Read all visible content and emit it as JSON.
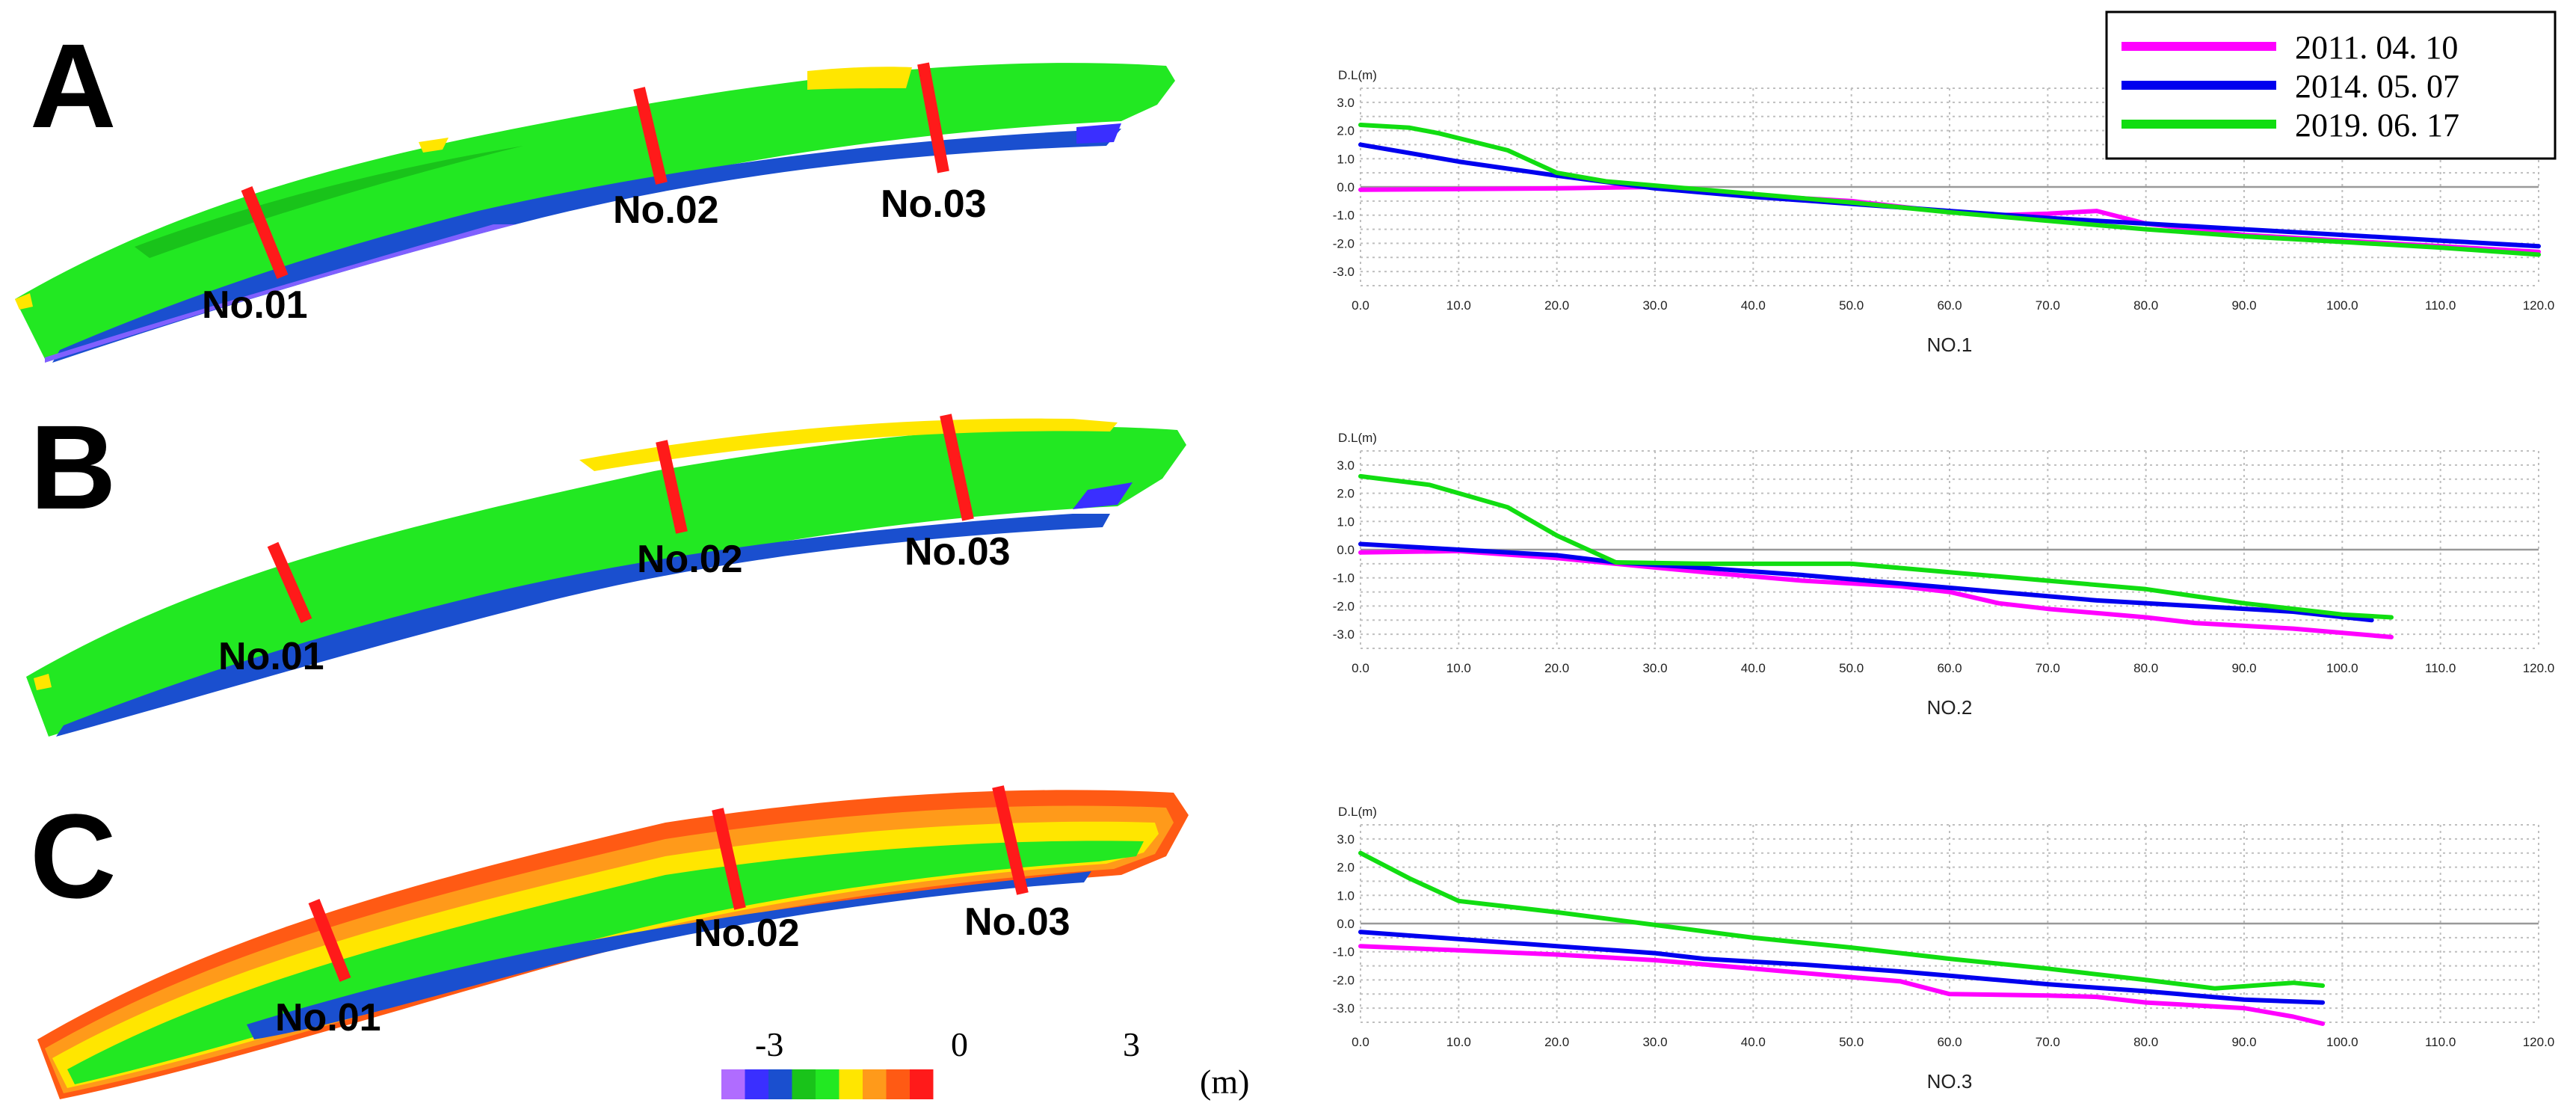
{
  "panels": [
    {
      "letter": "A",
      "sections": [
        "No.01",
        "No.02",
        "No.03"
      ]
    },
    {
      "letter": "B",
      "sections": [
        "No.01",
        "No.02",
        "No.03"
      ]
    },
    {
      "letter": "C",
      "sections": [
        "No.01",
        "No.02",
        "No.03"
      ]
    }
  ],
  "colorbar": {
    "colors": [
      "#b06cff",
      "#3a2fff",
      "#1a4fcf",
      "#19c31a",
      "#22e822",
      "#ffe600",
      "#ff9a1a",
      "#ff5a14",
      "#ff1a1a"
    ],
    "tick_labels": [
      "-3",
      "0",
      "3"
    ],
    "unit": "(m)"
  },
  "legend": {
    "entries": [
      {
        "label": "2011. 04. 10",
        "color": "#ff00ff"
      },
      {
        "label": "2014. 05. 07",
        "color": "#0000ee"
      },
      {
        "label": "2019. 06. 17",
        "color": "#11dd11"
      }
    ]
  },
  "chart_data": [
    {
      "type": "line",
      "title": "NO.1",
      "ylabel": "D.L(m)",
      "xlabel": "",
      "xlim": [
        0,
        120
      ],
      "ylim": [
        -3.5,
        3.5
      ],
      "x_ticks": [
        "0.0",
        "10.0",
        "20.0",
        "30.0",
        "40.0",
        "50.0",
        "60.0",
        "70.0",
        "80.0",
        "90.0",
        "100.0",
        "110.0",
        "120.0"
      ],
      "y_ticks": [
        "3.0",
        "2.0",
        "1.0",
        "0.0",
        "-1.0",
        "-2.0",
        "-3.0"
      ],
      "series": [
        {
          "name": "2011. 04. 10",
          "color": "#ff00ff",
          "x": [
            0,
            20,
            30,
            40,
            50,
            60,
            65,
            70,
            75,
            80,
            90,
            100,
            110,
            120
          ],
          "y": [
            -0.1,
            -0.05,
            0.0,
            -0.3,
            -0.5,
            -0.9,
            -1.0,
            -0.95,
            -0.85,
            -1.3,
            -1.7,
            -1.9,
            -2.1,
            -2.3
          ]
        },
        {
          "name": "2014. 05. 07",
          "color": "#0000ee",
          "x": [
            0,
            5,
            10,
            20,
            30,
            40,
            50,
            60,
            70,
            80,
            90,
            100,
            110,
            120
          ],
          "y": [
            1.5,
            1.2,
            0.9,
            0.4,
            -0.05,
            -0.35,
            -0.6,
            -0.85,
            -1.1,
            -1.3,
            -1.5,
            -1.7,
            -1.9,
            -2.1
          ]
        },
        {
          "name": "2019. 06. 17",
          "color": "#11dd11",
          "x": [
            0,
            5,
            8,
            15,
            20,
            25,
            30,
            40,
            50,
            60,
            70,
            80,
            90,
            100,
            110,
            120
          ],
          "y": [
            2.2,
            2.1,
            1.9,
            1.3,
            0.5,
            0.2,
            0.05,
            -0.25,
            -0.55,
            -0.9,
            -1.2,
            -1.5,
            -1.75,
            -1.95,
            -2.15,
            -2.4
          ]
        }
      ]
    },
    {
      "type": "line",
      "title": "NO.2",
      "ylabel": "D.L(m)",
      "xlabel": "",
      "xlim": [
        0,
        120
      ],
      "ylim": [
        -3.5,
        3.5
      ],
      "x_ticks": [
        "0.0",
        "10.0",
        "20.0",
        "30.0",
        "40.0",
        "50.0",
        "60.0",
        "70.0",
        "80.0",
        "90.0",
        "100.0",
        "110.0",
        "120.0"
      ],
      "y_ticks": [
        "3.0",
        "2.0",
        "1.0",
        "0.0",
        "-1.0",
        "-2.0",
        "-3.0"
      ],
      "series": [
        {
          "name": "2011. 04. 10",
          "color": "#ff00ff",
          "x": [
            0,
            10,
            20,
            26,
            35,
            45,
            55,
            60,
            65,
            70,
            80,
            85,
            95,
            105
          ],
          "y": [
            -0.1,
            -0.05,
            -0.3,
            -0.5,
            -0.8,
            -1.1,
            -1.3,
            -1.5,
            -1.9,
            -2.1,
            -2.4,
            -2.6,
            -2.8,
            -3.1
          ]
        },
        {
          "name": "2014. 05. 07",
          "color": "#0000ee",
          "x": [
            0,
            10,
            20,
            26,
            35,
            45,
            55,
            65,
            75,
            85,
            95,
            103
          ],
          "y": [
            0.2,
            0.0,
            -0.2,
            -0.45,
            -0.65,
            -0.9,
            -1.2,
            -1.5,
            -1.8,
            -2.0,
            -2.2,
            -2.5
          ]
        },
        {
          "name": "2019. 06. 17",
          "color": "#11dd11",
          "x": [
            0,
            7,
            15,
            20,
            26,
            35,
            45,
            50,
            60,
            70,
            80,
            90,
            100,
            105
          ],
          "y": [
            2.6,
            2.3,
            1.5,
            0.5,
            -0.45,
            -0.5,
            -0.5,
            -0.5,
            -0.8,
            -1.1,
            -1.4,
            -1.9,
            -2.3,
            -2.4
          ]
        }
      ]
    },
    {
      "type": "line",
      "title": "NO.3",
      "ylabel": "D.L(m)",
      "xlabel": "",
      "xlim": [
        0,
        120
      ],
      "ylim": [
        -3.5,
        3.5
      ],
      "x_ticks": [
        "0.0",
        "10.0",
        "20.0",
        "30.0",
        "40.0",
        "50.0",
        "60.0",
        "70.0",
        "80.0",
        "90.0",
        "100.0",
        "110.0",
        "120.0"
      ],
      "y_ticks": [
        "3.0",
        "2.0",
        "1.0",
        "0.0",
        "-1.0",
        "-2.0",
        "-3.0"
      ],
      "series": [
        {
          "name": "2011. 04. 10",
          "color": "#ff00ff",
          "x": [
            0,
            10,
            20,
            30,
            40,
            50,
            55,
            60,
            70,
            75,
            80,
            90,
            95,
            98
          ],
          "y": [
            -0.8,
            -0.95,
            -1.1,
            -1.3,
            -1.6,
            -1.9,
            -2.05,
            -2.5,
            -2.55,
            -2.6,
            -2.8,
            -3.0,
            -3.3,
            -3.55
          ]
        },
        {
          "name": "2014. 05. 07",
          "color": "#0000ee",
          "x": [
            0,
            10,
            20,
            30,
            35,
            45,
            55,
            60,
            70,
            80,
            90,
            98
          ],
          "y": [
            -0.3,
            -0.55,
            -0.8,
            -1.05,
            -1.25,
            -1.45,
            -1.7,
            -1.85,
            -2.15,
            -2.4,
            -2.7,
            -2.8
          ]
        },
        {
          "name": "2019. 06. 17",
          "color": "#11dd11",
          "x": [
            0,
            5,
            10,
            20,
            30,
            40,
            50,
            60,
            70,
            80,
            87,
            95,
            98
          ],
          "y": [
            2.5,
            1.6,
            0.8,
            0.4,
            -0.05,
            -0.5,
            -0.85,
            -1.25,
            -1.6,
            -2.0,
            -2.3,
            -2.1,
            -2.2
          ]
        }
      ]
    }
  ]
}
